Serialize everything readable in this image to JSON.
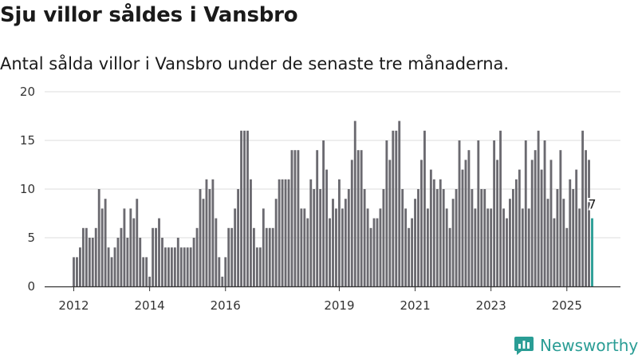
{
  "chart_data": {
    "type": "bar",
    "title": "Sju villor såldes i Vansbro",
    "subtitle": "Antal sålda villor i Vansbro under de senaste tre månaderna.",
    "xlabel": "",
    "ylabel": "",
    "ylim": [
      0,
      20
    ],
    "yticks": [
      0,
      5,
      10,
      15,
      20
    ],
    "grid": true,
    "start": "2012-01",
    "x_tick_labels": [
      {
        "label": "2012",
        "index": 0
      },
      {
        "label": "2014",
        "index": 24
      },
      {
        "label": "2016",
        "index": 48
      },
      {
        "label": "2019",
        "index": 84
      },
      {
        "label": "2021",
        "index": 108
      },
      {
        "label": "2023",
        "index": 132
      },
      {
        "label": "2025",
        "index": 156
      }
    ],
    "values": [
      3,
      3,
      4,
      6,
      6,
      5,
      5,
      6,
      10,
      8,
      9,
      4,
      3,
      4,
      5,
      6,
      8,
      5,
      8,
      7,
      9,
      5,
      3,
      3,
      1,
      6,
      6,
      7,
      5,
      4,
      4,
      4,
      4,
      5,
      4,
      4,
      4,
      4,
      5,
      6,
      10,
      9,
      11,
      10,
      11,
      7,
      3,
      1,
      3,
      6,
      6,
      8,
      10,
      16,
      16,
      16,
      11,
      6,
      4,
      4,
      8,
      6,
      6,
      6,
      9,
      11,
      11,
      11,
      11,
      14,
      14,
      14,
      8,
      8,
      7,
      11,
      10,
      14,
      10,
      15,
      12,
      7,
      9,
      8,
      11,
      8,
      9,
      10,
      13,
      17,
      14,
      14,
      10,
      8,
      6,
      7,
      7,
      8,
      10,
      15,
      13,
      16,
      16,
      17,
      10,
      8,
      6,
      7,
      9,
      10,
      13,
      16,
      8,
      12,
      11,
      10,
      11,
      10,
      8,
      6,
      9,
      10,
      15,
      12,
      13,
      14,
      10,
      8,
      15,
      10,
      10,
      8,
      8,
      15,
      13,
      16,
      8,
      7,
      9,
      10,
      11,
      12,
      8,
      15,
      8,
      13,
      14,
      16,
      12,
      15,
      9,
      13,
      7,
      10,
      14,
      9,
      6,
      11,
      10,
      12,
      8,
      16,
      14,
      13,
      7
    ],
    "highlight": {
      "label": "7",
      "value": 7,
      "color": "#2a9d95"
    },
    "bar_color": "#6b6a70"
  },
  "brand": {
    "name": "Newsworthy",
    "icon": "newsworthy-logo-icon",
    "color": "#2a9d95"
  }
}
